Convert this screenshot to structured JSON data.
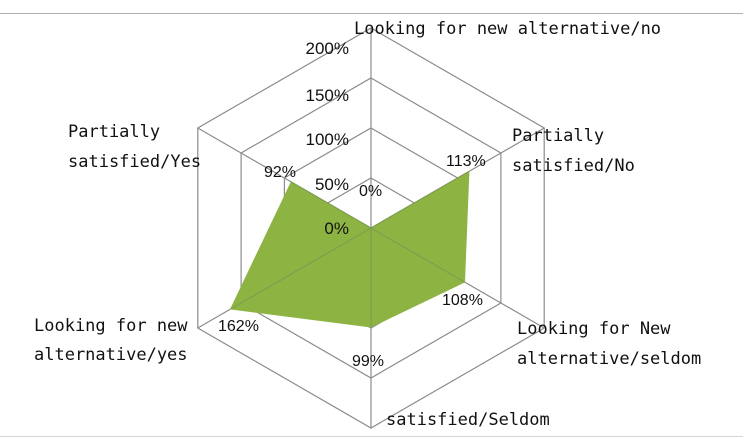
{
  "chart_data": {
    "type": "radar",
    "categories": [
      [
        "Looking for new alternative/no"
      ],
      [
        "Partially",
        "satisfied/No"
      ],
      [
        "Looking for New",
        "alternative/seldom"
      ],
      [
        "satisfied/Seldom"
      ],
      [
        "Looking for new",
        "alternative/yes"
      ],
      [
        "Partially",
        "satisfied/Yes"
      ]
    ],
    "values": [
      0,
      113,
      108,
      99,
      162,
      92
    ],
    "value_labels": [
      "0%",
      "113%",
      "108%",
      "99%",
      "162%",
      "92%"
    ],
    "radial_ticks": [
      "0%",
      "50%",
      "100%",
      "150%",
      "200%"
    ],
    "rmax": 200,
    "fill_color": "#8db443",
    "grid_color": "#8c8c8c",
    "legend": "none"
  }
}
